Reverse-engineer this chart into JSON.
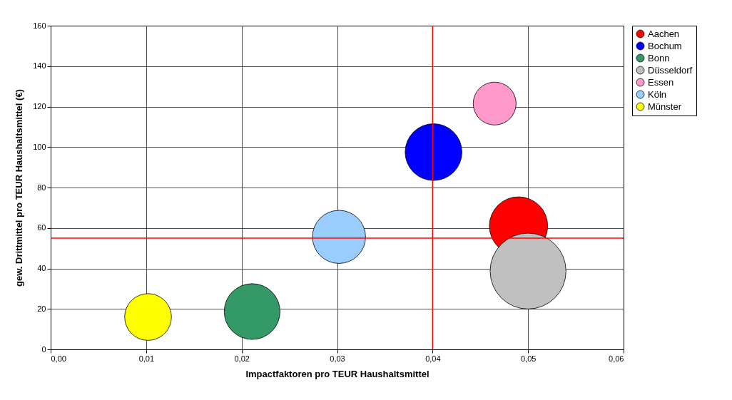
{
  "chart_data": {
    "type": "bubble",
    "xlabel": "Impactfaktoren pro TEUR Haushaltsmittel",
    "ylabel": "gew. Drittmittel pro TEUR Haushaltsmittel (€)",
    "series": [
      {
        "name": "Aachen",
        "color": "#ff0000",
        "x": [
          0.049
        ],
        "values": [
          61
        ],
        "sizes": [
          0.59
        ]
      },
      {
        "name": "Bochum",
        "color": "#0000ff",
        "x": [
          0.0401
        ],
        "values": [
          97.5
        ],
        "sizes": [
          0.56
        ]
      },
      {
        "name": "Bonn",
        "color": "#339966",
        "x": [
          0.0211
        ],
        "values": [
          18.7
        ],
        "sizes": [
          0.54
        ]
      },
      {
        "name": "Düsseldorf",
        "color": "#c0c0c0",
        "x": [
          0.05
        ],
        "values": [
          38.7
        ],
        "sizes": [
          1
        ]
      },
      {
        "name": "Essen",
        "color": "#ff99cc",
        "x": [
          0.0465
        ],
        "values": [
          121.5
        ],
        "sizes": [
          0.32
        ]
      },
      {
        "name": "Köln",
        "color": "#99ccff",
        "x": [
          0.0302
        ],
        "values": [
          55.6
        ],
        "sizes": [
          0.49
        ]
      },
      {
        "name": "Münster",
        "color": "#ffff00",
        "x": [
          0.0102
        ],
        "values": [
          16
        ],
        "sizes": [
          0.38
        ]
      }
    ],
    "xlim": [
      0,
      0.06
    ],
    "xticks": [
      {
        "value": 0,
        "label": "0,00"
      },
      {
        "value": 0.01,
        "label": "0,01"
      },
      {
        "value": 0.02,
        "label": "0,02"
      },
      {
        "value": 0.03,
        "label": "0,03"
      },
      {
        "value": 0.04,
        "label": "0,04"
      },
      {
        "value": 0.05,
        "label": "0,05"
      },
      {
        "value": 0.06,
        "label": "0,06"
      }
    ],
    "ylim": [
      0,
      160
    ],
    "yticks": [
      0,
      20,
      40,
      60,
      80,
      100,
      120,
      140,
      160
    ],
    "ref_lines": [
      {
        "axis": "x",
        "value": 0.04,
        "color": "#ff0000"
      },
      {
        "axis": "y",
        "value": 55,
        "color": "#ff0000"
      }
    ],
    "grid": true,
    "legend": "right"
  }
}
